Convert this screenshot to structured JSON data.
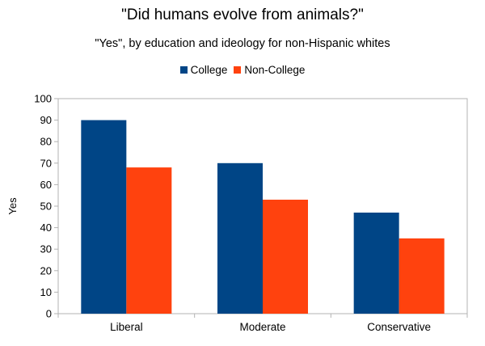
{
  "chart_data": {
    "type": "bar",
    "title": "\"Did humans evolve from animals?\"",
    "subtitle": "\"Yes\", by education and ideology for non-Hispanic whites",
    "ylabel": "Yes",
    "xlabel": "",
    "categories": [
      "Liberal",
      "Moderate",
      "Conservative"
    ],
    "series": [
      {
        "name": "College",
        "color": "#004586",
        "values": [
          90,
          70,
          47
        ]
      },
      {
        "name": "Non-College",
        "color": "#ff420e",
        "values": [
          68,
          53,
          35
        ]
      }
    ],
    "ylim": [
      0,
      100
    ],
    "yticks": [
      0,
      10,
      20,
      30,
      40,
      50,
      60,
      70,
      80,
      90,
      100
    ],
    "grid": false,
    "legend_position": "top"
  }
}
